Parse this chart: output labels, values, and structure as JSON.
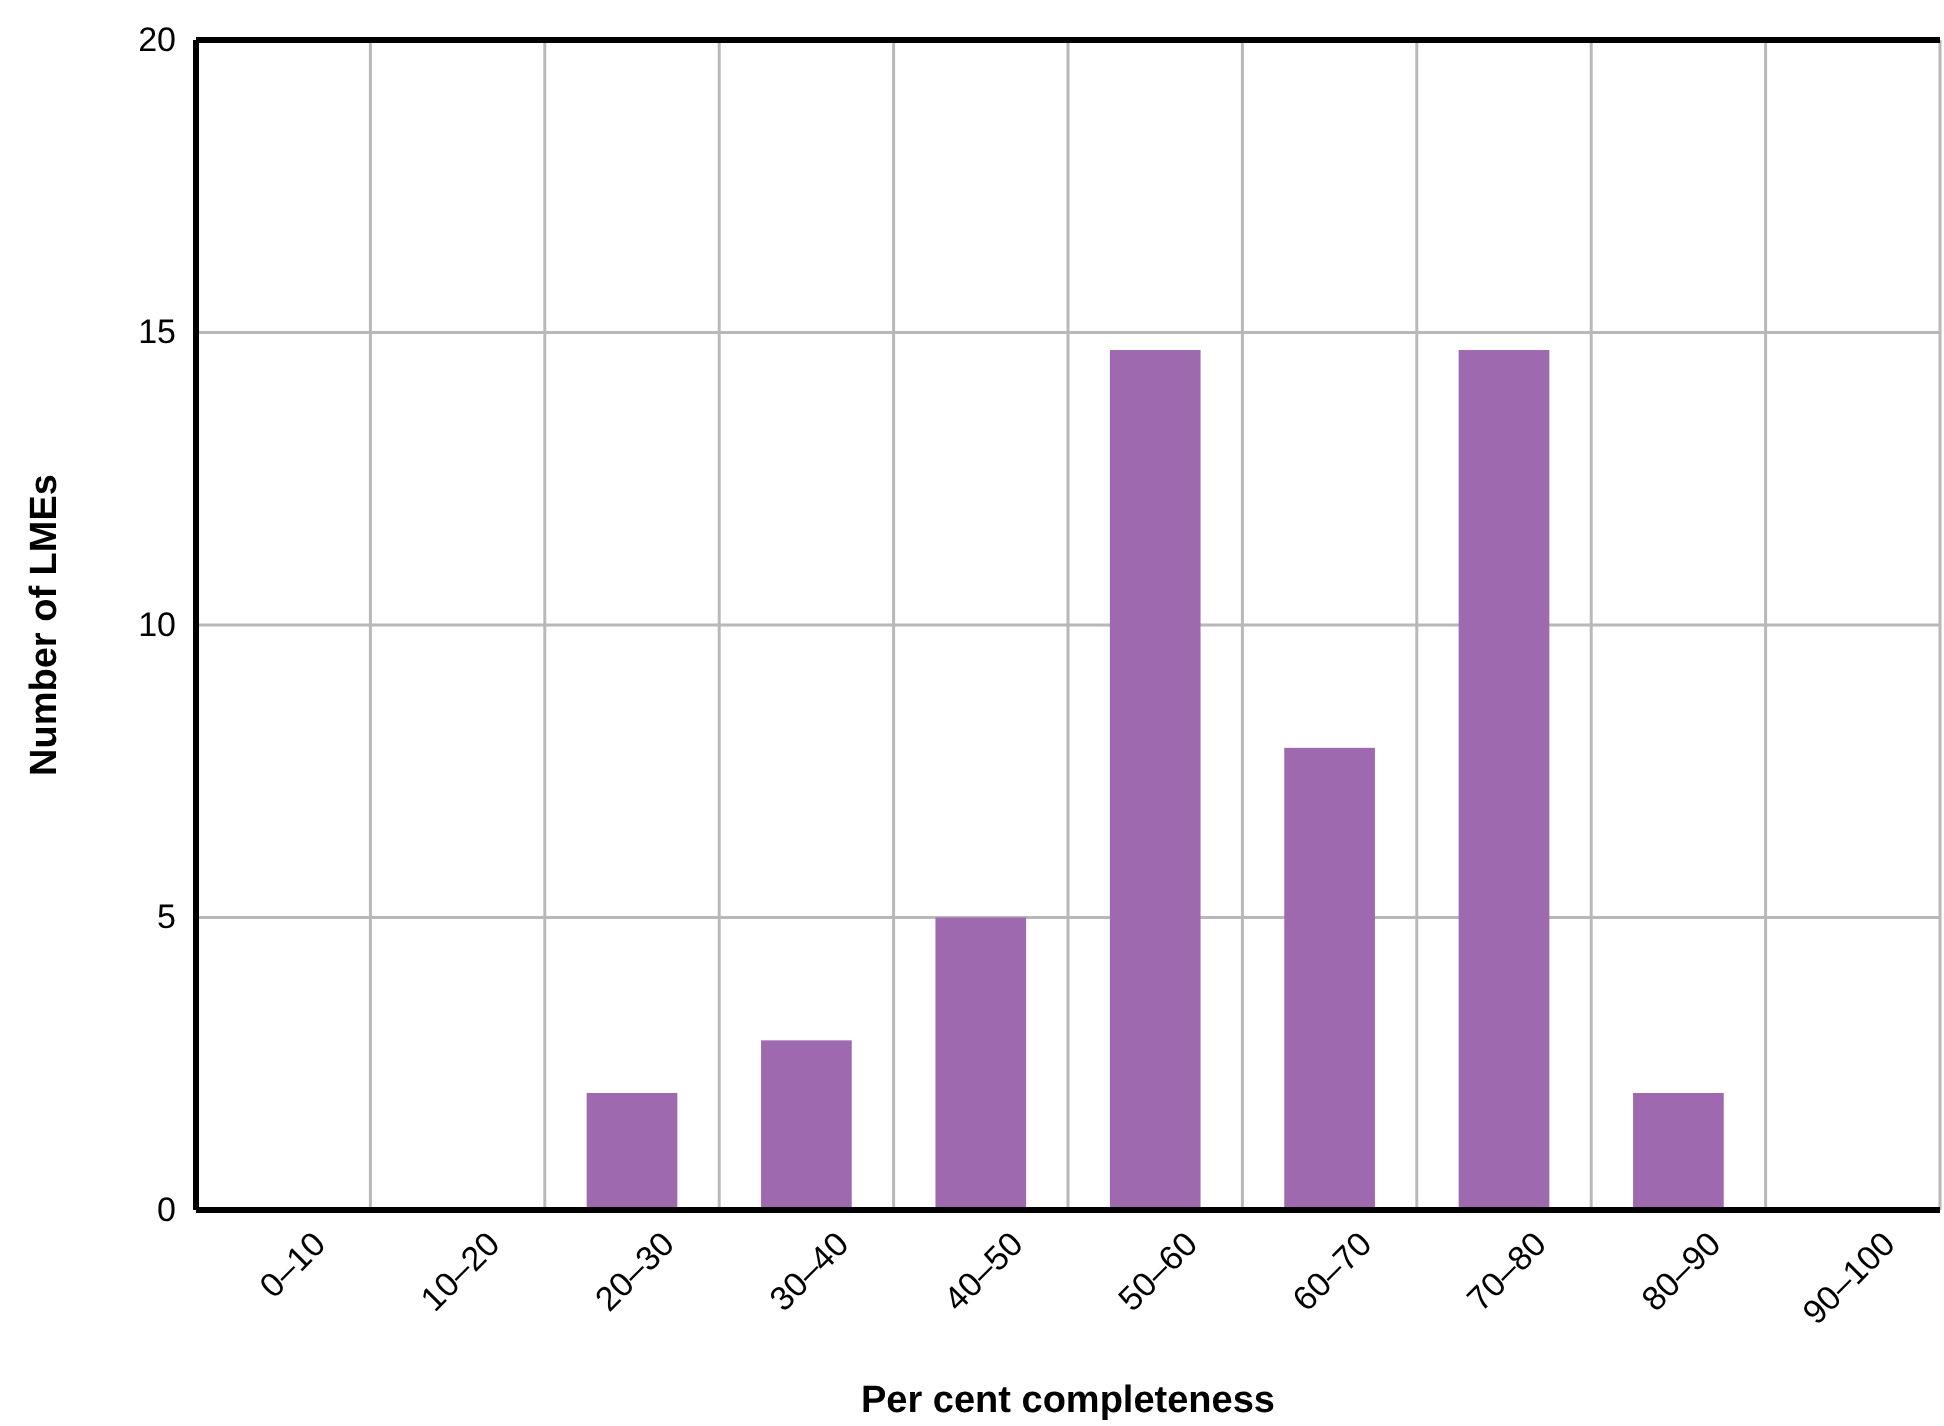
{
  "chart_data": {
    "type": "bar",
    "xlabel": "Per cent completeness",
    "ylabel": "Number of LMEs",
    "categories": [
      "0–10",
      "10–20",
      "20–30",
      "30–40",
      "40–50",
      "50–60",
      "60–70",
      "70–80",
      "80–90",
      "90–100"
    ],
    "values": [
      0,
      0,
      2,
      2.9,
      5,
      14.7,
      7.9,
      14.7,
      2,
      0
    ],
    "color": "#9e69af",
    "ylim": [
      0,
      20
    ],
    "yticks": [
      0,
      5,
      10,
      15,
      20
    ],
    "grid": true
  }
}
